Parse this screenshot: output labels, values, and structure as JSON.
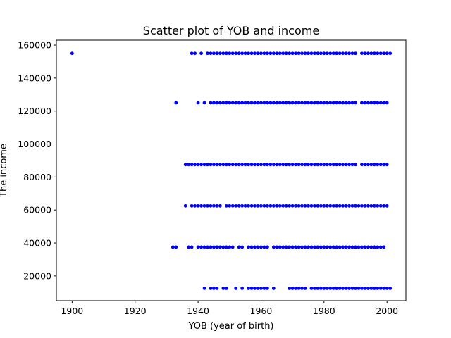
{
  "chart_data": {
    "type": "scatter",
    "title": "Scatter plot of YOB and income",
    "xlabel": "YOB (year of birth)",
    "ylabel": "The income",
    "xlim": [
      1895,
      2006
    ],
    "ylim": [
      5000,
      163000
    ],
    "xticks": [
      1900,
      1920,
      1940,
      1960,
      1980,
      2000
    ],
    "yticks": [
      20000,
      40000,
      60000,
      80000,
      100000,
      120000,
      140000,
      160000
    ],
    "grid": false,
    "legend": "none",
    "marker_color": "#0000ff",
    "series": [
      {
        "points": [
          {
            "y": 155000,
            "x": [
              1900,
              1938,
              1939,
              1941
            ],
            "range": [
              1943,
              1990
            ],
            "range2": [
              1992,
              2001
            ]
          },
          {
            "y": 125000,
            "x": [
              1933,
              1940,
              1942
            ],
            "range": [
              1944,
              1990
            ],
            "range2": [
              1992,
              2000
            ]
          },
          {
            "y": 87500,
            "x": [],
            "range": [
              1936,
              1990
            ],
            "range2": [
              1992,
              2000
            ]
          },
          {
            "y": 62500,
            "x": [
              1936
            ],
            "range": [
              1938,
              1947
            ],
            "range2": [
              1949,
              2000
            ]
          },
          {
            "y": 37500,
            "x": [
              1932,
              1933,
              1937,
              1938,
              1953,
              1954,
              1956,
              1957,
              1958,
              1959,
              1960,
              1961,
              1962
            ],
            "range": [
              1940,
              1951
            ],
            "range2": [
              1964,
              1999
            ]
          },
          {
            "y": 12500,
            "x": [
              1942,
              1944,
              1945,
              1946,
              1948,
              1949,
              1952,
              1954,
              1956,
              1957,
              1958,
              1959,
              1960,
              1961,
              1962,
              1964,
              1969,
              1970,
              1971,
              1972,
              1973,
              1974
            ],
            "range": [
              1976,
              2001
            ],
            "range2": []
          }
        ]
      }
    ]
  }
}
